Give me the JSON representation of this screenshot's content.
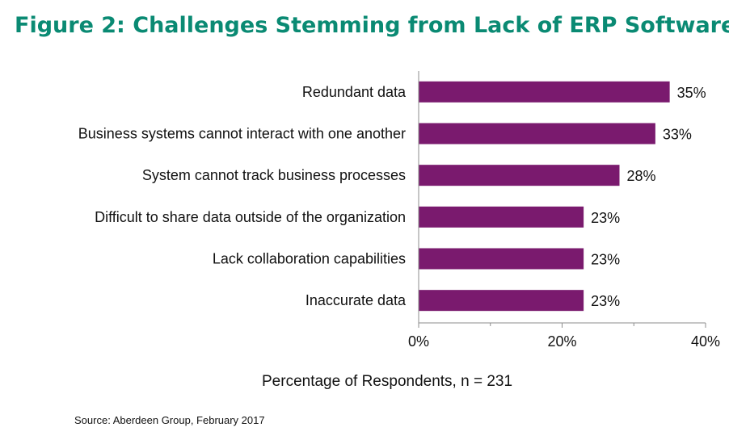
{
  "chart_data": {
    "type": "bar",
    "orientation": "horizontal",
    "title": "Figure 2: Challenges Stemming from Lack of ERP Software",
    "categories": [
      "Redundant data",
      "Business systems cannot interact with one another",
      "System cannot track business processes",
      "Difficult to share data outside of the organization",
      "Lack collaboration capabilities",
      "Inaccurate data"
    ],
    "values": [
      35,
      33,
      28,
      23,
      23,
      23
    ],
    "value_labels": [
      "35%",
      "33%",
      "28%",
      "23%",
      "23%",
      "23%"
    ],
    "xlabel": "Percentage of Respondents, n = 231",
    "ylabel": "",
    "xlim": [
      0,
      40
    ],
    "x_ticks": [
      0,
      20,
      40
    ],
    "x_tick_labels": [
      "0%",
      "20%",
      "40%"
    ],
    "grid": false,
    "bar_color": "#7a1a6e",
    "source": "Source: Aberdeen Group, February 2017"
  }
}
